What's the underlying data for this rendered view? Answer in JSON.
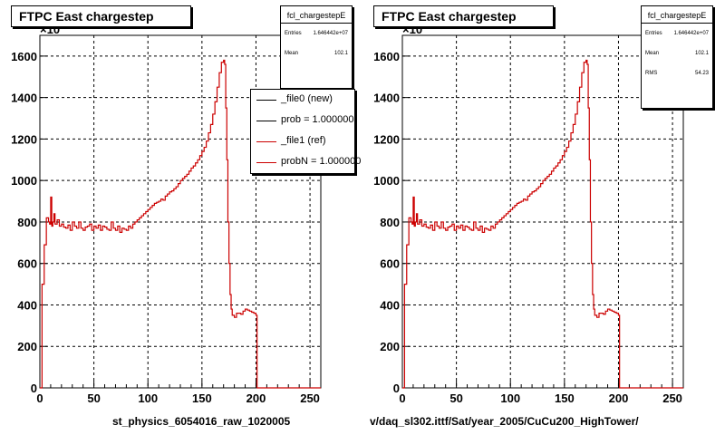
{
  "chart_data": [
    {
      "type": "histogram",
      "title": "FTPC East chargestep",
      "xlabel": "st_physics_6054016_raw_1020005",
      "ylabel": "",
      "y_exponent_label": "×10",
      "y_exponent_power": "3",
      "xlim": [
        0,
        260
      ],
      "ylim": [
        0,
        1700
      ],
      "xticks": [
        0,
        50,
        100,
        150,
        200,
        250
      ],
      "yticks": [
        0,
        200,
        400,
        600,
        800,
        1000,
        1200,
        1400,
        1600
      ],
      "grid": true,
      "stats": {
        "name": "fcl_chargestepE",
        "rows": [
          {
            "key": "Entries",
            "value": "1.646442e+07"
          },
          {
            "key": "Mean",
            "value": "102.1"
          }
        ]
      },
      "legend": [
        {
          "label": "_file0 (new)",
          "color": "#000000"
        },
        {
          "label": "prob = 1.000000",
          "color": "#000000"
        },
        {
          "label": "_file1 (ref)",
          "color": "#cc0000"
        },
        {
          "label": "probN = 1.000000",
          "color": "#cc0000"
        }
      ],
      "series": [
        {
          "color": "#cc0000",
          "x": [
            0,
            2,
            4,
            6,
            8,
            9,
            10,
            11,
            12,
            13,
            14,
            16,
            18,
            20,
            22,
            24,
            26,
            28,
            30,
            32,
            34,
            36,
            38,
            40,
            42,
            44,
            46,
            48,
            50,
            52,
            54,
            56,
            58,
            60,
            62,
            64,
            66,
            68,
            70,
            72,
            74,
            76,
            78,
            80,
            82,
            84,
            86,
            88,
            90,
            92,
            94,
            96,
            98,
            100,
            102,
            104,
            106,
            108,
            110,
            112,
            114,
            116,
            118,
            120,
            122,
            124,
            126,
            128,
            130,
            132,
            134,
            136,
            138,
            140,
            142,
            144,
            146,
            148,
            150,
            152,
            154,
            156,
            158,
            160,
            162,
            164,
            166,
            168,
            170,
            171,
            172,
            173,
            174,
            175,
            176,
            177,
            178,
            180,
            182,
            184,
            186,
            188,
            190,
            192,
            194,
            196,
            198,
            200,
            201,
            202,
            203,
            204,
            260
          ],
          "y": [
            0,
            500,
            690,
            820,
            800,
            790,
            920,
            780,
            800,
            840,
            790,
            810,
            780,
            790,
            775,
            770,
            785,
            760,
            800,
            780,
            770,
            800,
            770,
            760,
            775,
            780,
            790,
            760,
            780,
            770,
            785,
            760,
            780,
            775,
            765,
            760,
            800,
            770,
            760,
            780,
            750,
            770,
            765,
            760,
            780,
            770,
            790,
            800,
            810,
            820,
            830,
            840,
            850,
            860,
            870,
            880,
            890,
            895,
            900,
            910,
            905,
            925,
            935,
            945,
            950,
            960,
            970,
            985,
            1000,
            1010,
            1020,
            1030,
            1045,
            1060,
            1070,
            1085,
            1100,
            1120,
            1140,
            1160,
            1190,
            1230,
            1270,
            1320,
            1380,
            1450,
            1520,
            1570,
            1580,
            1560,
            1350,
            1100,
            800,
            600,
            450,
            380,
            350,
            340,
            360,
            360,
            355,
            370,
            380,
            375,
            370,
            365,
            360,
            350,
            0,
            0,
            0,
            0,
            0
          ]
        }
      ]
    },
    {
      "type": "histogram",
      "title": "FTPC East chargestep",
      "xlabel": "v/daq_sl302.ittf/Sat/year_2005/CuCu200_HighTower/",
      "ylabel": "",
      "y_exponent_label": "×10",
      "y_exponent_power": "3",
      "xlim": [
        0,
        260
      ],
      "ylim": [
        0,
        1700
      ],
      "xticks": [
        0,
        50,
        100,
        150,
        200,
        250
      ],
      "yticks": [
        0,
        200,
        400,
        600,
        800,
        1000,
        1200,
        1400,
        1600
      ],
      "grid": true,
      "stats": {
        "name": "fcl_chargestepE",
        "rows": [
          {
            "key": "Entries",
            "value": "1.646442e+07"
          },
          {
            "key": "Mean",
            "value": "102.1"
          },
          {
            "key": "RMS",
            "value": "54.23"
          }
        ]
      },
      "series": [
        {
          "color": "#cc0000",
          "x": [
            0,
            2,
            4,
            6,
            8,
            9,
            10,
            11,
            12,
            13,
            14,
            16,
            18,
            20,
            22,
            24,
            26,
            28,
            30,
            32,
            34,
            36,
            38,
            40,
            42,
            44,
            46,
            48,
            50,
            52,
            54,
            56,
            58,
            60,
            62,
            64,
            66,
            68,
            70,
            72,
            74,
            76,
            78,
            80,
            82,
            84,
            86,
            88,
            90,
            92,
            94,
            96,
            98,
            100,
            102,
            104,
            106,
            108,
            110,
            112,
            114,
            116,
            118,
            120,
            122,
            124,
            126,
            128,
            130,
            132,
            134,
            136,
            138,
            140,
            142,
            144,
            146,
            148,
            150,
            152,
            154,
            156,
            158,
            160,
            162,
            164,
            166,
            168,
            170,
            171,
            172,
            173,
            174,
            175,
            176,
            177,
            178,
            180,
            182,
            184,
            186,
            188,
            190,
            192,
            194,
            196,
            198,
            200,
            201,
            202,
            203,
            204,
            260
          ],
          "y": [
            0,
            500,
            690,
            820,
            800,
            790,
            920,
            780,
            800,
            840,
            790,
            810,
            780,
            790,
            775,
            770,
            785,
            760,
            800,
            780,
            770,
            800,
            770,
            760,
            775,
            780,
            790,
            760,
            780,
            770,
            785,
            760,
            780,
            775,
            765,
            760,
            800,
            770,
            760,
            780,
            750,
            770,
            765,
            760,
            780,
            770,
            790,
            800,
            810,
            820,
            830,
            840,
            850,
            860,
            870,
            880,
            890,
            895,
            900,
            910,
            905,
            925,
            935,
            945,
            950,
            960,
            970,
            985,
            1000,
            1010,
            1020,
            1030,
            1045,
            1060,
            1070,
            1085,
            1100,
            1120,
            1140,
            1160,
            1190,
            1230,
            1270,
            1320,
            1380,
            1450,
            1520,
            1570,
            1580,
            1560,
            1350,
            1100,
            800,
            600,
            450,
            380,
            350,
            340,
            360,
            360,
            355,
            370,
            380,
            375,
            370,
            365,
            360,
            350,
            0,
            0,
            0,
            0,
            0
          ]
        }
      ]
    }
  ]
}
